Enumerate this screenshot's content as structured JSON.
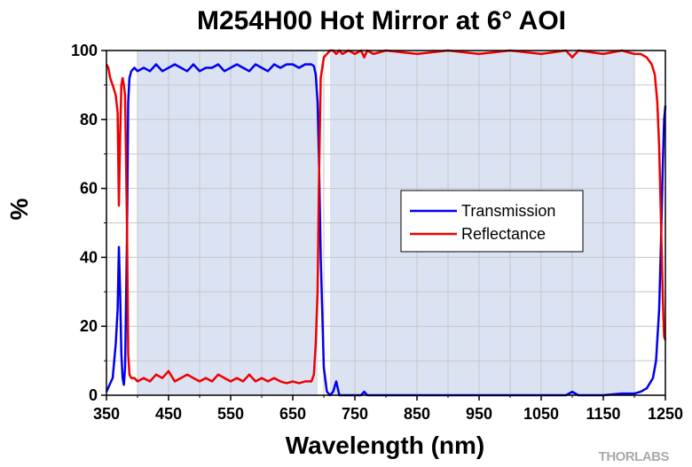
{
  "chart_data": {
    "type": "line",
    "title": "M254H00 Hot Mirror at 6° AOI",
    "xlabel": "Wavelength (nm)",
    "ylabel": "%",
    "xlim": [
      350,
      1250
    ],
    "ylim": [
      0,
      100
    ],
    "x_ticks": [
      350,
      450,
      550,
      650,
      750,
      850,
      950,
      1050,
      1150,
      1250
    ],
    "x_tick_labels": [
      "350",
      "450",
      "550",
      "650",
      "750",
      "850",
      "950",
      "1050",
      "1150",
      "1250"
    ],
    "y_ticks": [
      0,
      20,
      40,
      60,
      80,
      100
    ],
    "y_tick_labels": [
      "0",
      "20",
      "40",
      "60",
      "80",
      "100"
    ],
    "grid": true,
    "legend_position": "center-right",
    "shaded_regions": [
      [
        400,
        690
      ],
      [
        710,
        1200
      ]
    ],
    "shade_color": "#dbe3f3",
    "series": [
      {
        "name": "Transmission",
        "color": "#0000ee",
        "x": [
          350,
          355,
          360,
          365,
          368,
          370,
          372,
          374,
          376,
          378,
          380,
          383,
          385,
          387,
          390,
          395,
          400,
          410,
          420,
          430,
          440,
          450,
          460,
          470,
          480,
          490,
          500,
          510,
          520,
          530,
          540,
          550,
          560,
          570,
          580,
          590,
          600,
          610,
          620,
          630,
          640,
          650,
          660,
          670,
          680,
          684,
          687,
          690,
          692,
          695,
          700,
          705,
          710,
          715,
          720,
          725,
          730,
          740,
          750,
          760,
          765,
          770,
          780,
          800,
          850,
          900,
          950,
          1000,
          1050,
          1090,
          1100,
          1110,
          1150,
          1180,
          1200,
          1210,
          1220,
          1230,
          1235,
          1240,
          1243,
          1246,
          1248,
          1250
        ],
        "y": [
          1,
          3,
          5,
          15,
          25,
          43,
          30,
          12,
          5,
          3,
          8,
          45,
          85,
          92,
          94,
          95,
          94,
          95,
          94,
          96,
          94,
          95,
          96,
          95,
          94,
          96,
          94,
          95,
          95,
          96,
          94,
          95,
          96,
          95,
          94,
          96,
          95,
          94,
          96,
          95,
          96,
          96,
          95,
          96,
          96,
          95.5,
          93,
          85,
          70,
          40,
          8,
          1,
          0,
          1,
          4,
          0,
          0,
          0,
          0,
          0,
          1,
          0,
          0,
          0,
          0,
          0,
          0,
          0,
          0,
          0,
          1,
          0,
          0,
          0.5,
          0.5,
          1,
          2,
          5,
          10,
          25,
          45,
          68,
          80,
          84
        ]
      },
      {
        "name": "Reflectance",
        "color": "#ee0000",
        "x": [
          350,
          353,
          356,
          360,
          365,
          368,
          370,
          372,
          374,
          376,
          378,
          380,
          383,
          385,
          387,
          390,
          395,
          400,
          410,
          420,
          430,
          440,
          450,
          460,
          470,
          480,
          490,
          500,
          510,
          520,
          530,
          540,
          550,
          560,
          570,
          580,
          590,
          600,
          610,
          620,
          630,
          640,
          650,
          660,
          670,
          680,
          684,
          687,
          690,
          692,
          695,
          700,
          705,
          710,
          715,
          720,
          725,
          730,
          740,
          750,
          760,
          765,
          770,
          780,
          800,
          850,
          900,
          950,
          1000,
          1050,
          1090,
          1100,
          1110,
          1150,
          1180,
          1200,
          1210,
          1220,
          1228,
          1233,
          1237,
          1240,
          1243,
          1246,
          1248,
          1250
        ],
        "y": [
          96,
          95,
          92,
          90,
          87,
          82,
          55,
          75,
          90,
          92,
          90,
          87,
          50,
          12,
          6,
          5,
          5,
          4,
          5,
          4,
          6,
          5,
          7,
          4,
          5,
          6,
          5,
          4,
          5,
          4,
          6,
          5,
          4,
          5,
          4,
          6,
          4,
          5,
          4,
          5,
          4,
          3.5,
          4,
          3.5,
          4,
          4,
          6,
          15,
          30,
          60,
          92,
          98,
          99,
          100,
          100,
          99,
          100,
          99,
          100,
          99,
          100,
          98,
          100,
          99,
          100,
          99,
          100,
          99,
          100,
          99,
          100,
          98,
          100,
          99,
          100,
          99,
          99,
          98,
          96,
          93,
          85,
          72,
          50,
          27,
          17,
          16
        ]
      }
    ],
    "watermark": "THORLABS"
  }
}
